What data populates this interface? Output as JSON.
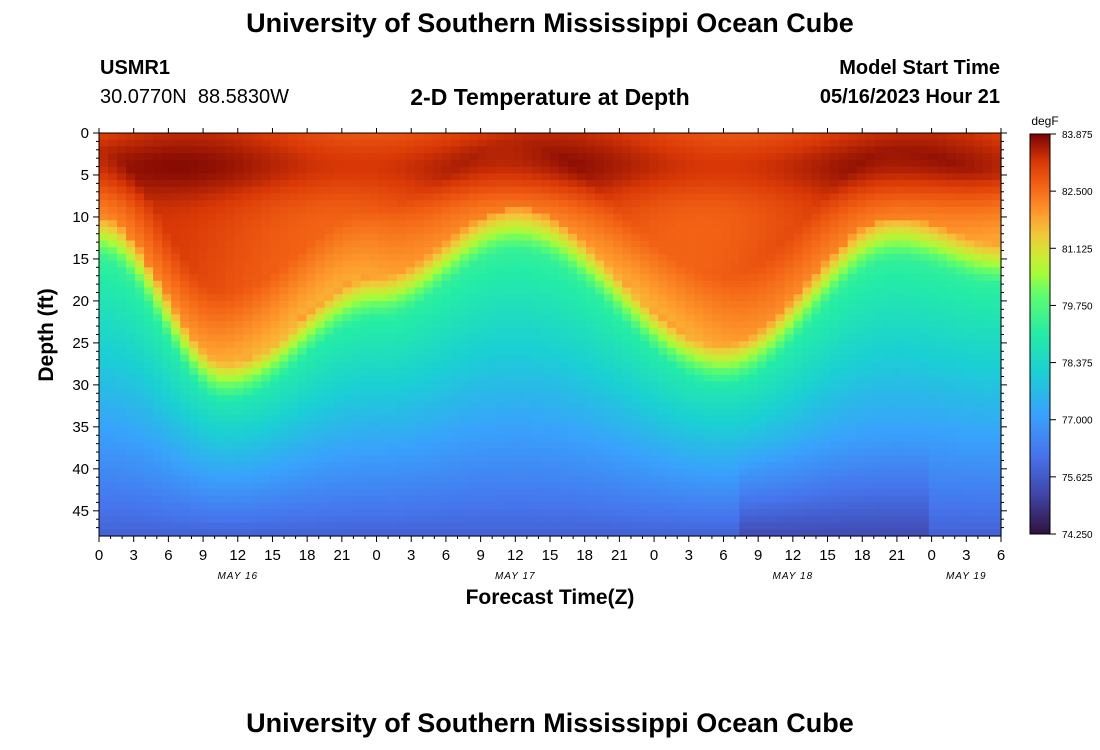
{
  "header": {
    "title": "University of Southern Mississippi Ocean Cube",
    "station_id": "USMR1",
    "station_coords": "30.0770N  88.5830W",
    "chart_title": "2-D Temperature at Depth",
    "model_start_label": "Model Start Time",
    "model_start_value": "05/16/2023 Hour 21"
  },
  "footer": {
    "title": "University of Southern Mississippi Ocean Cube"
  },
  "colors": {
    "hot": "#7a0403",
    "cold": "#30123b"
  },
  "chart_data": {
    "type": "heatmap",
    "title": "2-D Temperature at Depth",
    "xlabel": "Forecast Time(Z)",
    "ylabel": "Depth (ft)",
    "units": "degF",
    "x_start_hour": 0,
    "x_end_hour": 78,
    "x_tick_labels": [
      "0",
      "3",
      "6",
      "9",
      "12",
      "15",
      "18",
      "21",
      "0",
      "3",
      "6",
      "9",
      "12",
      "15",
      "18",
      "21",
      "0",
      "3",
      "6",
      "9",
      "12",
      "15",
      "18",
      "21",
      "0",
      "3",
      "6"
    ],
    "x_date_labels": [
      {
        "label": "MAY 16",
        "hour": 12
      },
      {
        "label": "MAY 17",
        "hour": 36
      },
      {
        "label": "MAY 18",
        "hour": 60
      },
      {
        "label": "MAY 19",
        "hour": 75
      }
    ],
    "y_ticks": [
      0,
      5,
      10,
      15,
      20,
      25,
      30,
      35,
      40,
      45
    ],
    "ylim": [
      48,
      0
    ],
    "colorbar": {
      "label": "degF",
      "ticks": [
        "83.875",
        "82.500",
        "81.125",
        "79.750",
        "78.375",
        "77.000",
        "75.625",
        "74.250"
      ],
      "min": 74.25,
      "max": 83.875
    },
    "thermocline_depth_ft": [
      {
        "hour": 0,
        "depth": 10
      },
      {
        "hour": 11,
        "depth": 27
      },
      {
        "hour": 24,
        "depth": 17
      },
      {
        "hour": 36,
        "depth": 9
      },
      {
        "hour": 54,
        "depth": 25
      },
      {
        "hour": 69,
        "depth": 10
      },
      {
        "hour": 78,
        "depth": 13
      }
    ]
  }
}
